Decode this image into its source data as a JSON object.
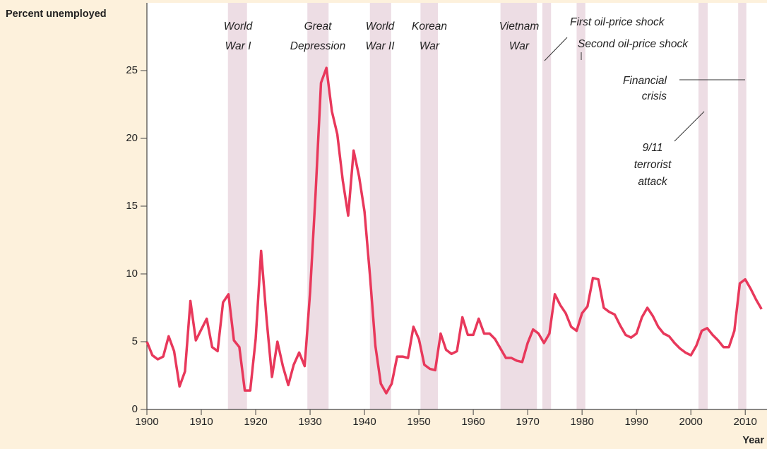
{
  "chart_data": {
    "type": "line",
    "y_label": "Percent unemployed",
    "x_label": "Year",
    "xlim": [
      1900,
      2014
    ],
    "ylim": [
      0,
      30
    ],
    "xticks": [
      1900,
      1910,
      1920,
      1930,
      1940,
      1950,
      1960,
      1970,
      1980,
      1990,
      2000,
      2010
    ],
    "yticks": [
      0,
      5,
      10,
      15,
      20,
      25
    ],
    "series": [
      {
        "color": "#e8385b",
        "x": [
          1900,
          1901,
          1902,
          1903,
          1904,
          1905,
          1906,
          1907,
          1908,
          1909,
          1910,
          1911,
          1912,
          1913,
          1914,
          1915,
          1916,
          1917,
          1918,
          1919,
          1920,
          1921,
          1922,
          1923,
          1924,
          1925,
          1926,
          1927,
          1928,
          1929,
          1930,
          1931,
          1932,
          1933,
          1934,
          1935,
          1936,
          1937,
          1938,
          1939,
          1940,
          1941,
          1942,
          1943,
          1944,
          1945,
          1946,
          1947,
          1948,
          1949,
          1950,
          1951,
          1952,
          1953,
          1954,
          1955,
          1956,
          1957,
          1958,
          1959,
          1960,
          1961,
          1962,
          1963,
          1964,
          1965,
          1966,
          1967,
          1968,
          1969,
          1970,
          1971,
          1972,
          1973,
          1974,
          1975,
          1976,
          1977,
          1978,
          1979,
          1980,
          1981,
          1982,
          1983,
          1984,
          1985,
          1986,
          1987,
          1988,
          1989,
          1990,
          1991,
          1992,
          1993,
          1994,
          1995,
          1996,
          1997,
          1998,
          1999,
          2000,
          2001,
          2002,
          2003,
          2004,
          2005,
          2006,
          2007,
          2008,
          2009,
          2010,
          2011,
          2012,
          2013
        ],
        "values": [
          5.0,
          4.0,
          3.7,
          3.9,
          5.4,
          4.3,
          1.7,
          2.8,
          8.0,
          5.1,
          5.9,
          6.7,
          4.6,
          4.3,
          7.9,
          8.5,
          5.1,
          4.6,
          1.4,
          1.4,
          5.2,
          11.7,
          6.7,
          2.4,
          5.0,
          3.2,
          1.8,
          3.3,
          4.2,
          3.2,
          8.7,
          15.9,
          24.1,
          25.2,
          22.0,
          20.3,
          16.9,
          14.3,
          19.1,
          17.2,
          14.6,
          9.9,
          4.7,
          1.9,
          1.2,
          1.9,
          3.9,
          3.9,
          3.8,
          6.1,
          5.2,
          3.3,
          3.0,
          2.9,
          5.6,
          4.4,
          4.1,
          4.3,
          6.8,
          5.5,
          5.5,
          6.7,
          5.6,
          5.6,
          5.2,
          4.5,
          3.8,
          3.8,
          3.6,
          3.5,
          4.9,
          5.9,
          5.6,
          4.9,
          5.6,
          8.5,
          7.7,
          7.1,
          6.1,
          5.8,
          7.1,
          7.6,
          9.7,
          9.6,
          7.5,
          7.2,
          7.0,
          6.2,
          5.5,
          5.3,
          5.6,
          6.8,
          7.5,
          6.9,
          6.1,
          5.6,
          5.4,
          4.9,
          4.5,
          4.2,
          4.0,
          4.7,
          5.8,
          6.0,
          5.5,
          5.1,
          4.6,
          4.6,
          5.8,
          9.3,
          9.6,
          8.9,
          8.1,
          7.4
        ]
      }
    ],
    "band_color": "#eddde4",
    "shaded_periods": [
      {
        "label": [
          "World",
          "War I"
        ],
        "start": 1914.9,
        "end": 1918.4
      },
      {
        "label": [
          "Great",
          "Depression"
        ],
        "start": 1929.5,
        "end": 1933.4
      },
      {
        "label": [
          "World",
          "War II"
        ],
        "start": 1941,
        "end": 1944.9
      },
      {
        "label": [
          "Korean",
          "War"
        ],
        "start": 1950.3,
        "end": 1953.5
      },
      {
        "label": [
          "Vietnam",
          "War"
        ],
        "start": 1965,
        "end": 1971.7
      },
      {
        "label": [
          "First oil-price shock"
        ],
        "start": 1972.7,
        "end": 1974.3
      },
      {
        "label": [
          "Second oil-price shock"
        ],
        "start": 1979,
        "end": 1980.6
      },
      {
        "label": [
          "9/11",
          "terrorist",
          "attack"
        ],
        "start": 2001.4,
        "end": 2003.1
      },
      {
        "label": [
          "Financial",
          "crisis"
        ],
        "start": 2008.7,
        "end": 2010.2
      }
    ]
  }
}
